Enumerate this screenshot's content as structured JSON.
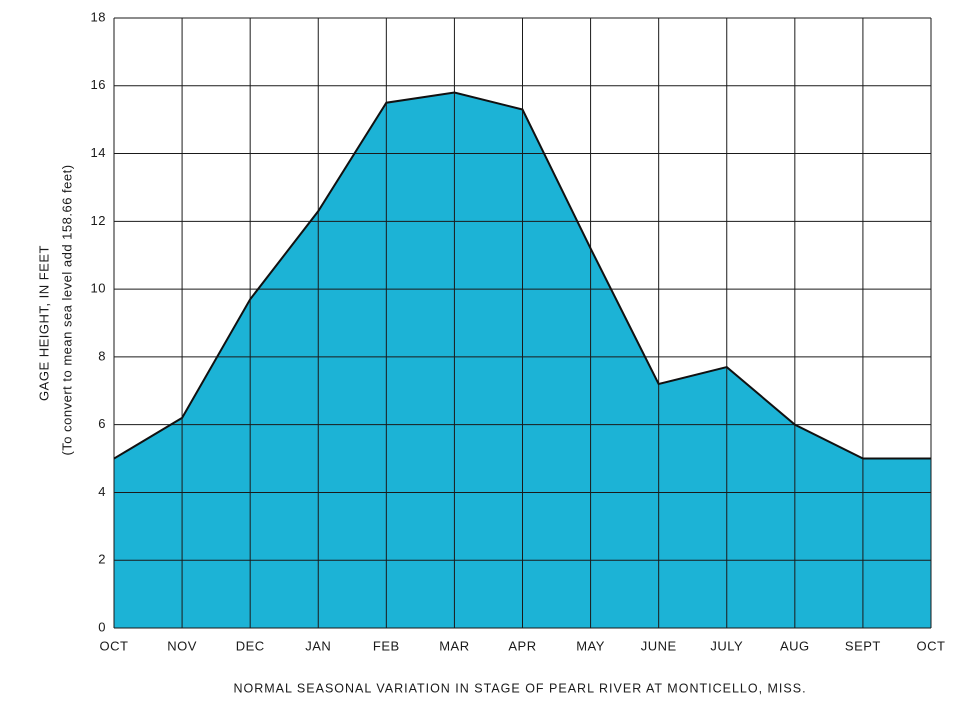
{
  "chart_data": {
    "type": "area",
    "title": "NORMAL SEASONAL VARIATION IN STAGE OF PEARL RIVER AT MONTICELLO, MISS.",
    "y_label": "GAGE HEIGHT, IN FEET",
    "y_label_note": "(To convert to mean sea level add 158.66 feet)",
    "categories": [
      "OCT",
      "NOV",
      "DEC",
      "JAN",
      "FEB",
      "MAR",
      "APR",
      "MAY",
      "JUNE",
      "JULY",
      "AUG",
      "SEPT",
      "OCT"
    ],
    "values": [
      5.0,
      6.2,
      9.7,
      12.3,
      15.5,
      15.8,
      15.3,
      11.2,
      7.2,
      7.7,
      6.0,
      5.0,
      5.0
    ],
    "color": "#1cb3d6",
    "line_color": "#111111",
    "ylim": [
      0,
      18
    ],
    "yticks": [
      0,
      2,
      4,
      6,
      8,
      10,
      12,
      14,
      16,
      18
    ],
    "grid": true
  }
}
